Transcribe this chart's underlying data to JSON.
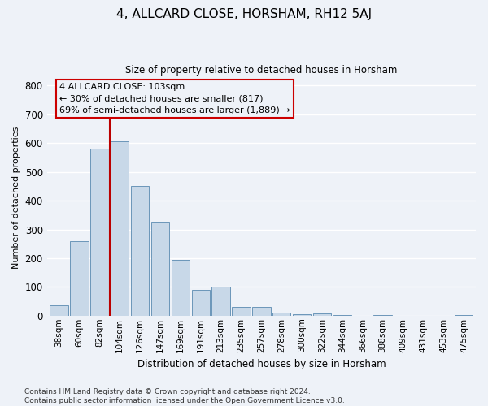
{
  "title": "4, ALLCARD CLOSE, HORSHAM, RH12 5AJ",
  "subtitle": "Size of property relative to detached houses in Horsham",
  "xlabel": "Distribution of detached houses by size in Horsham",
  "ylabel": "Number of detached properties",
  "categories": [
    "38sqm",
    "60sqm",
    "82sqm",
    "104sqm",
    "126sqm",
    "147sqm",
    "169sqm",
    "191sqm",
    "213sqm",
    "235sqm",
    "257sqm",
    "278sqm",
    "300sqm",
    "322sqm",
    "344sqm",
    "366sqm",
    "388sqm",
    "409sqm",
    "431sqm",
    "453sqm",
    "475sqm"
  ],
  "values": [
    35,
    260,
    580,
    605,
    450,
    325,
    195,
    90,
    100,
    30,
    30,
    10,
    5,
    8,
    3,
    0,
    3,
    0,
    0,
    0,
    2
  ],
  "bar_color": "#c8d8e8",
  "bar_edge_color": "#5a8ab0",
  "annotation_lines": [
    "4 ALLCARD CLOSE: 103sqm",
    "← 30% of detached houses are smaller (817)",
    "69% of semi-detached houses are larger (1,889) →"
  ],
  "annotation_box_color": "#cc0000",
  "ylim": [
    0,
    820
  ],
  "yticks": [
    0,
    100,
    200,
    300,
    400,
    500,
    600,
    700,
    800
  ],
  "background_color": "#eef2f8",
  "grid_color": "#ffffff",
  "footer": "Contains HM Land Registry data © Crown copyright and database right 2024.\nContains public sector information licensed under the Open Government Licence v3.0."
}
